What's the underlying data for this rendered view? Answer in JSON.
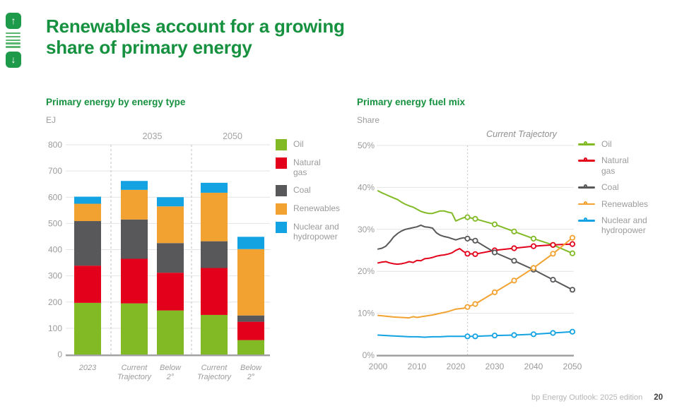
{
  "page": {
    "title_line1": "Renewables account for a growing",
    "title_line2": "share of primary energy",
    "footer_source": "bp Energy Outlook: 2025 edition",
    "footer_page": "20"
  },
  "nav": {
    "up_icon": "↑",
    "down_icon": "↓"
  },
  "bar_legend": [
    {
      "label": "Oil",
      "color": "#82ba26"
    },
    {
      "label": "Natural\ngas",
      "color": "#e2001a"
    },
    {
      "label": "Coal",
      "color": "#58585b"
    },
    {
      "label": "Renewables",
      "color": "#f2a231"
    },
    {
      "label": "Nuclear and\nhydropower",
      "color": "#14a3e2"
    }
  ],
  "line_legend": [
    {
      "label": "Oil",
      "color": "#82ba26"
    },
    {
      "label": "Natural\ngas",
      "color": "#e2001a"
    },
    {
      "label": "Coal",
      "color": "#58585b"
    },
    {
      "label": "Renewables",
      "color": "#f2a231"
    },
    {
      "label": "Nuclear and\nhydropower",
      "color": "#14a3e2"
    }
  ],
  "chart_data": [
    {
      "type": "bar",
      "stacked": true,
      "title": "Primary energy by energy type",
      "unit": "EJ",
      "ylabel": "EJ",
      "ylim": [
        0,
        800
      ],
      "grid": true,
      "ytick_values": [
        0,
        100,
        200,
        300,
        400,
        500,
        600,
        700,
        800
      ],
      "ytick_labels": [
        "0",
        "100",
        "200",
        "300",
        "400",
        "500",
        "600",
        "700",
        "800"
      ],
      "group_labels": [
        "2035",
        "2050"
      ],
      "categories": [
        "2023",
        "Current Trajectory",
        "Below 2°",
        "Current Trajectory",
        "Below 2°"
      ],
      "category_label_lines": [
        [
          "2023"
        ],
        [
          "Current",
          "Trajectory"
        ],
        [
          "Below",
          "2°"
        ],
        [
          "Current",
          "Trajectory"
        ],
        [
          "Below",
          "2°"
        ]
      ],
      "series": [
        {
          "name": "Oil",
          "color": "#82ba26",
          "values": [
            197,
            195,
            168,
            151,
            55
          ]
        },
        {
          "name": "Natural gas",
          "color": "#e2001a",
          "values": [
            142,
            170,
            144,
            179,
            70
          ]
        },
        {
          "name": "Coal",
          "color": "#58585b",
          "values": [
            170,
            150,
            113,
            102,
            24
          ]
        },
        {
          "name": "Renewables",
          "color": "#f2a231",
          "values": [
            66,
            113,
            140,
            185,
            253
          ]
        },
        {
          "name": "Nuclear and hydropower",
          "color": "#14a3e2",
          "values": [
            27,
            34,
            35,
            38,
            47
          ]
        }
      ]
    },
    {
      "type": "line",
      "title": "Primary energy fuel mix",
      "unit": "Share",
      "ylabel": "Share",
      "annotation": "Current Trajectory",
      "annotation_year": 2023,
      "ylim": [
        0,
        50
      ],
      "xlim": [
        2000,
        2050
      ],
      "grid": true,
      "legend_position": "right",
      "ytick_values": [
        0,
        10,
        20,
        30,
        40,
        50
      ],
      "ytick_labels": [
        "0%",
        "10%",
        "20%",
        "30%",
        "40%",
        "50%"
      ],
      "xtick_values": [
        2000,
        2010,
        2020,
        2030,
        2040,
        2050
      ],
      "xtick_labels": [
        "2000",
        "2010",
        "2020",
        "2030",
        "2040",
        "2050"
      ],
      "series": [
        {
          "name": "Oil",
          "color": "#82ba26",
          "points": [
            [
              2000,
              39.2
            ],
            [
              2001,
              38.7
            ],
            [
              2002,
              38.3
            ],
            [
              2003,
              37.9
            ],
            [
              2004,
              37.5
            ],
            [
              2005,
              37.1
            ],
            [
              2006,
              36.5
            ],
            [
              2007,
              36.0
            ],
            [
              2008,
              35.6
            ],
            [
              2009,
              35.3
            ],
            [
              2010,
              34.8
            ],
            [
              2011,
              34.3
            ],
            [
              2012,
              34.0
            ],
            [
              2013,
              33.8
            ],
            [
              2014,
              33.8
            ],
            [
              2015,
              34.1
            ],
            [
              2016,
              34.4
            ],
            [
              2017,
              34.4
            ],
            [
              2018,
              34.1
            ],
            [
              2019,
              33.9
            ],
            [
              2020,
              32.0
            ],
            [
              2021,
              32.4
            ],
            [
              2022,
              32.8
            ],
            [
              2023,
              32.9
            ],
            [
              2025,
              32.5
            ],
            [
              2030,
              31.2
            ],
            [
              2035,
              29.5
            ],
            [
              2040,
              27.8
            ],
            [
              2045,
              26.3
            ],
            [
              2050,
              24.3
            ]
          ],
          "markers": [
            [
              2023,
              32.9
            ],
            [
              2025,
              32.5
            ],
            [
              2030,
              31.2
            ],
            [
              2035,
              29.5
            ],
            [
              2040,
              27.8
            ],
            [
              2045,
              26.3
            ],
            [
              2050,
              24.3
            ]
          ]
        },
        {
          "name": "Natural gas",
          "color": "#e2001a",
          "points": [
            [
              2000,
              22.0
            ],
            [
              2001,
              22.2
            ],
            [
              2002,
              22.3
            ],
            [
              2003,
              22.0
            ],
            [
              2004,
              21.8
            ],
            [
              2005,
              21.7
            ],
            [
              2006,
              21.8
            ],
            [
              2007,
              22.0
            ],
            [
              2008,
              22.3
            ],
            [
              2009,
              22.1
            ],
            [
              2010,
              22.6
            ],
            [
              2011,
              22.5
            ],
            [
              2012,
              23.0
            ],
            [
              2013,
              23.1
            ],
            [
              2014,
              23.3
            ],
            [
              2015,
              23.6
            ],
            [
              2016,
              23.8
            ],
            [
              2017,
              23.9
            ],
            [
              2018,
              24.1
            ],
            [
              2019,
              24.4
            ],
            [
              2020,
              25.0
            ],
            [
              2021,
              25.4
            ],
            [
              2022,
              24.7
            ],
            [
              2023,
              24.2
            ],
            [
              2025,
              24.1
            ],
            [
              2030,
              25.0
            ],
            [
              2035,
              25.5
            ],
            [
              2040,
              26.0
            ],
            [
              2045,
              26.3
            ],
            [
              2050,
              26.5
            ]
          ],
          "markers": [
            [
              2023,
              24.2
            ],
            [
              2025,
              24.1
            ],
            [
              2030,
              25.0
            ],
            [
              2035,
              25.5
            ],
            [
              2040,
              26.0
            ],
            [
              2045,
              26.3
            ],
            [
              2050,
              26.5
            ]
          ]
        },
        {
          "name": "Coal",
          "color": "#58585b",
          "points": [
            [
              2000,
              25.3
            ],
            [
              2001,
              25.5
            ],
            [
              2002,
              26.0
            ],
            [
              2003,
              27.0
            ],
            [
              2004,
              28.2
            ],
            [
              2005,
              29.0
            ],
            [
              2006,
              29.6
            ],
            [
              2007,
              30.0
            ],
            [
              2008,
              30.2
            ],
            [
              2009,
              30.4
            ],
            [
              2010,
              30.6
            ],
            [
              2011,
              31.0
            ],
            [
              2012,
              30.6
            ],
            [
              2013,
              30.5
            ],
            [
              2014,
              30.3
            ],
            [
              2015,
              29.2
            ],
            [
              2016,
              28.6
            ],
            [
              2017,
              28.3
            ],
            [
              2018,
              28.1
            ],
            [
              2019,
              27.8
            ],
            [
              2020,
              27.5
            ],
            [
              2021,
              27.8
            ],
            [
              2022,
              28.0
            ],
            [
              2023,
              27.8
            ],
            [
              2025,
              27.3
            ],
            [
              2030,
              24.5
            ],
            [
              2035,
              22.5
            ],
            [
              2040,
              20.4
            ],
            [
              2045,
              18.0
            ],
            [
              2050,
              15.6
            ]
          ],
          "markers": [
            [
              2023,
              27.8
            ],
            [
              2025,
              27.3
            ],
            [
              2030,
              24.5
            ],
            [
              2035,
              22.5
            ],
            [
              2040,
              20.4
            ],
            [
              2045,
              18.0
            ],
            [
              2050,
              15.6
            ]
          ]
        },
        {
          "name": "Renewables",
          "color": "#f2a231",
          "points": [
            [
              2000,
              9.5
            ],
            [
              2002,
              9.3
            ],
            [
              2004,
              9.1
            ],
            [
              2006,
              9.0
            ],
            [
              2008,
              8.9
            ],
            [
              2009,
              9.2
            ],
            [
              2010,
              9.0
            ],
            [
              2012,
              9.3
            ],
            [
              2014,
              9.6
            ],
            [
              2016,
              10.0
            ],
            [
              2018,
              10.4
            ],
            [
              2020,
              11.0
            ],
            [
              2022,
              11.2
            ],
            [
              2023,
              11.5
            ],
            [
              2025,
              12.2
            ],
            [
              2030,
              15.0
            ],
            [
              2035,
              17.8
            ],
            [
              2040,
              20.8
            ],
            [
              2045,
              24.2
            ],
            [
              2050,
              28.0
            ]
          ],
          "markers": [
            [
              2023,
              11.5
            ],
            [
              2025,
              12.2
            ],
            [
              2030,
              15.0
            ],
            [
              2035,
              17.8
            ],
            [
              2040,
              20.8
            ],
            [
              2045,
              24.2
            ],
            [
              2050,
              28.0
            ]
          ]
        },
        {
          "name": "Nuclear and hydropower",
          "color": "#14a3e2",
          "points": [
            [
              2000,
              4.8
            ],
            [
              2002,
              4.7
            ],
            [
              2004,
              4.6
            ],
            [
              2006,
              4.5
            ],
            [
              2008,
              4.4
            ],
            [
              2010,
              4.4
            ],
            [
              2012,
              4.3
            ],
            [
              2014,
              4.4
            ],
            [
              2016,
              4.4
            ],
            [
              2018,
              4.5
            ],
            [
              2020,
              4.5
            ],
            [
              2022,
              4.5
            ],
            [
              2023,
              4.5
            ],
            [
              2025,
              4.5
            ],
            [
              2030,
              4.7
            ],
            [
              2035,
              4.8
            ],
            [
              2040,
              5.0
            ],
            [
              2045,
              5.3
            ],
            [
              2050,
              5.6
            ]
          ],
          "markers": [
            [
              2023,
              4.5
            ],
            [
              2025,
              4.5
            ],
            [
              2030,
              4.7
            ],
            [
              2035,
              4.8
            ],
            [
              2040,
              5.0
            ],
            [
              2045,
              5.3
            ],
            [
              2050,
              5.6
            ]
          ]
        }
      ]
    }
  ]
}
